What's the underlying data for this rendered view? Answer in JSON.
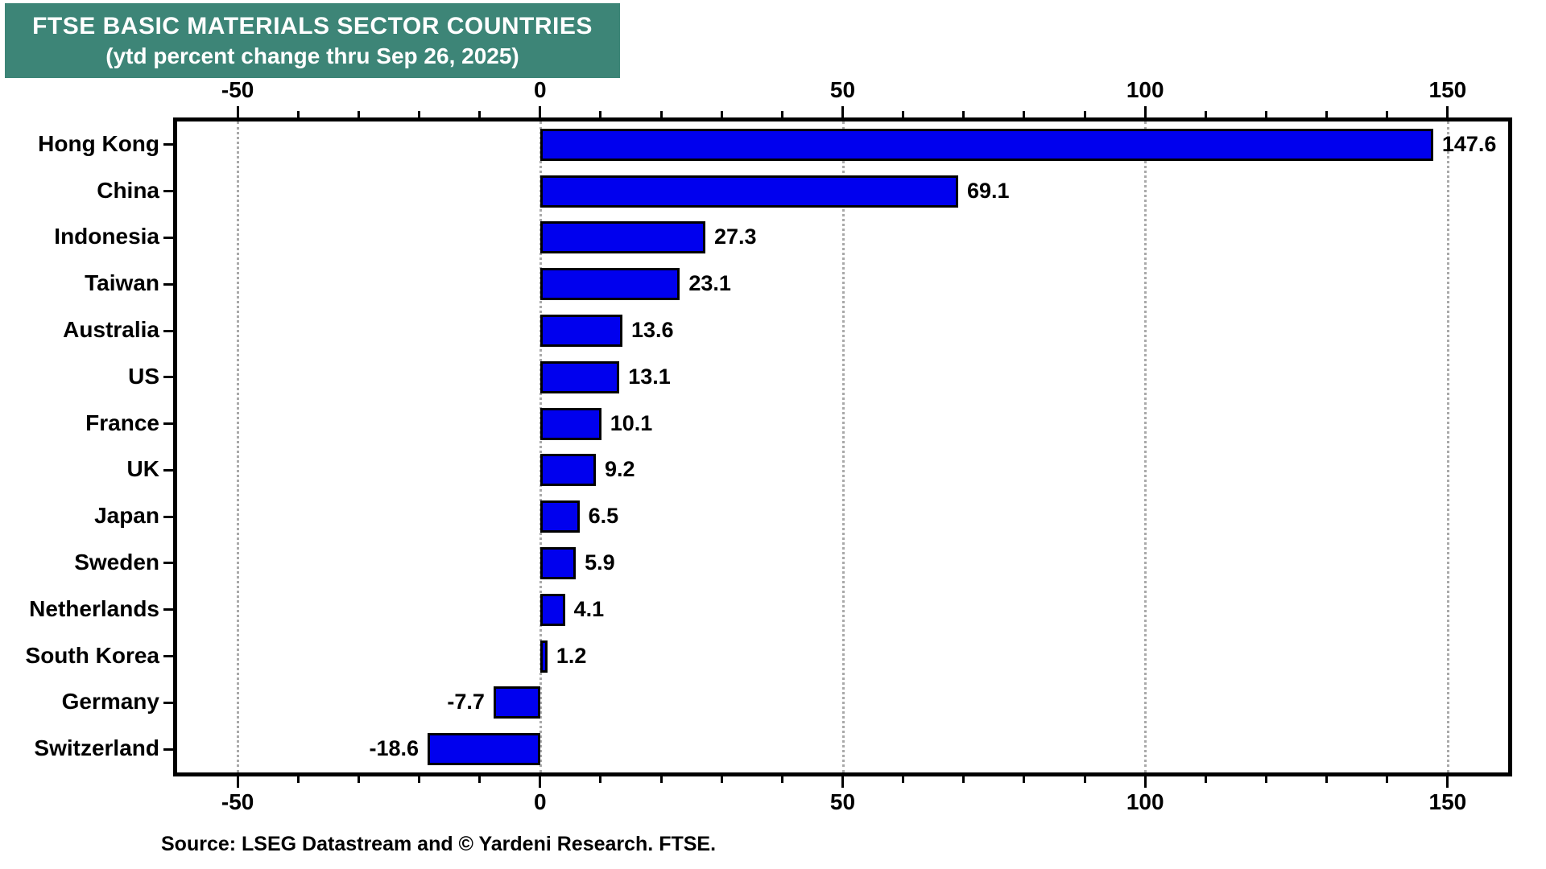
{
  "title": {
    "line1": "FTSE BASIC MATERIALS SECTOR COUNTRIES",
    "line2": "(ytd percent change thru Sep 26, 2025)"
  },
  "source": "Source: LSEG Datastream and © Yardeni Research. FTSE.",
  "colors": {
    "title_bg": "#3D8577",
    "title_text": "#FFFFFF",
    "bar_fill": "#0000EE",
    "bar_border": "#000000",
    "gridline": "#A9A9A9",
    "frame": "#000000"
  },
  "chart_data": {
    "type": "bar",
    "orientation": "horizontal",
    "title": "FTSE BASIC MATERIALS SECTOR COUNTRIES (ytd percent change thru Sep 26, 2025)",
    "categories": [
      "Hong Kong",
      "China",
      "Indonesia",
      "Taiwan",
      "Australia",
      "US",
      "France",
      "UK",
      "Japan",
      "Sweden",
      "Netherlands",
      "South Korea",
      "Germany",
      "Switzerland"
    ],
    "values": [
      147.6,
      69.1,
      27.3,
      23.1,
      13.6,
      13.1,
      10.1,
      9.2,
      6.5,
      5.9,
      4.1,
      1.2,
      -7.7,
      -18.6
    ],
    "xlabel": "",
    "ylabel": "",
    "xlim": [
      -60,
      160
    ],
    "x_major_ticks": [
      -50,
      0,
      50,
      100,
      150
    ],
    "x_minor_tick_step": 10,
    "grid": "vertical dotted gridlines at major ticks, mirrored top and bottom axes",
    "legend": "none",
    "value_labels": "bold, at bar ends (right of positive bars, left of negative bars)"
  }
}
